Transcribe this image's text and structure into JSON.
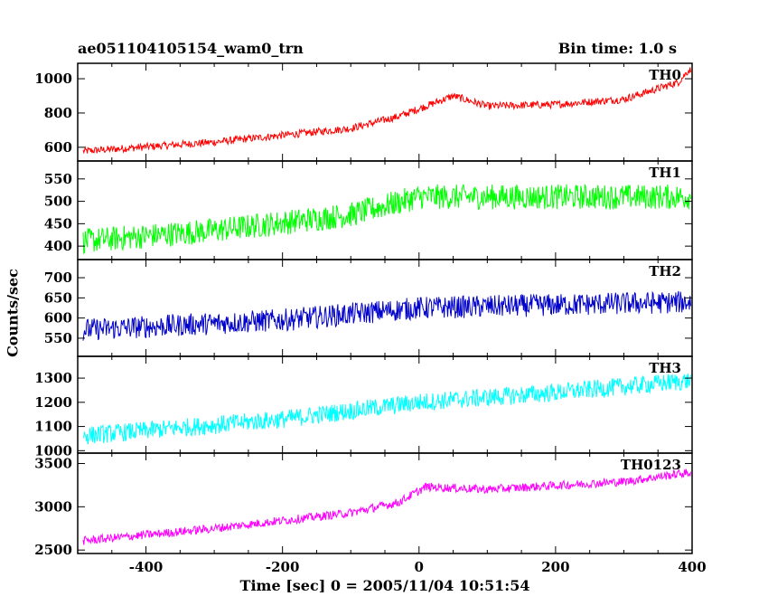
{
  "header": {
    "title_left": "ae051104105154_wam0_trn",
    "title_right": "Bin time: 1.0 s"
  },
  "axes": {
    "ylabel": "Counts/sec",
    "xlabel": "Time [sec] 0 = 2005/11/04 10:51:54"
  },
  "chart_data": {
    "type": "line",
    "x_range": [
      -500,
      400
    ],
    "x_ticks": [
      -400,
      -200,
      0,
      200,
      400
    ],
    "bin_time_s": 1.0,
    "panels": [
      {
        "name": "TH0",
        "color": "#ff0000",
        "ylim": [
          520,
          1090
        ],
        "y_ticks": [
          600,
          800,
          1000
        ],
        "trend_points": [
          [
            -500,
            575
          ],
          [
            -300,
            630
          ],
          [
            -100,
            710
          ],
          [
            -30,
            780
          ],
          [
            50,
            900
          ],
          [
            100,
            840
          ],
          [
            200,
            850
          ],
          [
            300,
            880
          ],
          [
            380,
            980
          ],
          [
            395,
            1050
          ]
        ],
        "noise_amplitude": 22
      },
      {
        "name": "TH1",
        "color": "#00ff00",
        "ylim": [
          370,
          590
        ],
        "y_ticks": [
          400,
          450,
          500,
          550
        ],
        "trend_points": [
          [
            -500,
            410
          ],
          [
            -300,
            435
          ],
          [
            -100,
            470
          ],
          [
            0,
            510
          ],
          [
            400,
            510
          ]
        ],
        "noise_amplitude": 28
      },
      {
        "name": "TH2",
        "color": "#0000cc",
        "ylim": [
          505,
          745
        ],
        "y_ticks": [
          550,
          600,
          650,
          700
        ],
        "trend_points": [
          [
            -500,
            570
          ],
          [
            -200,
            595
          ],
          [
            0,
            625
          ],
          [
            400,
            640
          ]
        ],
        "noise_amplitude": 28
      },
      {
        "name": "TH3",
        "color": "#00ffff",
        "ylim": [
          990,
          1390
        ],
        "y_ticks": [
          1000,
          1100,
          1200,
          1300
        ],
        "trend_points": [
          [
            -500,
            1060
          ],
          [
            -200,
            1130
          ],
          [
            0,
            1200
          ],
          [
            200,
            1240
          ],
          [
            400,
            1290
          ]
        ],
        "noise_amplitude": 38
      },
      {
        "name": "TH0123",
        "color": "#ff00ff",
        "ylim": [
          2460,
          3620
        ],
        "y_ticks": [
          2500,
          3000,
          3500
        ],
        "trend_points": [
          [
            -500,
            2600
          ],
          [
            -300,
            2750
          ],
          [
            -100,
            2930
          ],
          [
            -30,
            3050
          ],
          [
            10,
            3230
          ],
          [
            100,
            3200
          ],
          [
            300,
            3290
          ],
          [
            390,
            3390
          ]
        ],
        "noise_amplitude": 50
      }
    ]
  }
}
